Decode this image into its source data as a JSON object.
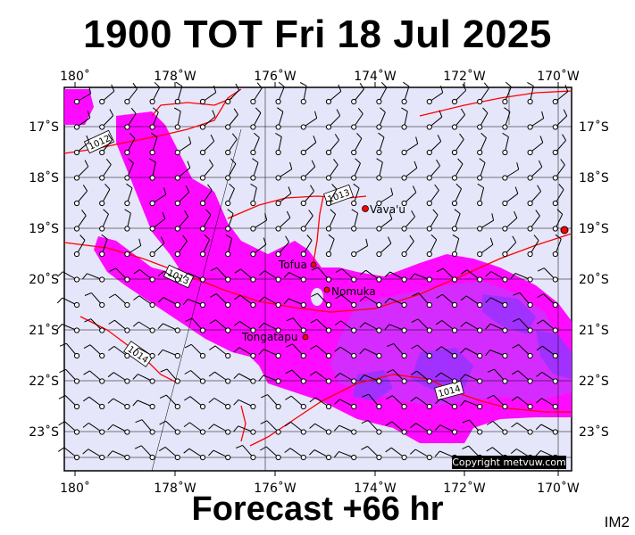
{
  "title": "1900 TOT Fri 18 Jul 2025",
  "footer": "Forecast +66 hr",
  "image_code": "IM2",
  "copyright": "Copyright metvuw.com",
  "axes": {
    "lon_labels": [
      "180˚",
      "178˚W",
      "176˚W",
      "174˚W",
      "172˚W",
      "170˚W"
    ],
    "lat_labels": [
      "17˚S",
      "18˚S",
      "19˚S",
      "20˚S",
      "21˚S",
      "22˚S",
      "23˚S"
    ]
  },
  "places": [
    {
      "name": "Vava'u",
      "symbol": "dot"
    },
    {
      "name": "Tofua",
      "symbol": "dot"
    },
    {
      "name": "Nomuka",
      "symbol": "dot"
    },
    {
      "name": "Tongatapu",
      "symbol": "dot"
    }
  ],
  "isobars": [
    {
      "label": "1012"
    },
    {
      "label": "1013"
    },
    {
      "label": "1013"
    },
    {
      "label": "1014"
    },
    {
      "label": "1014"
    }
  ],
  "colors": {
    "ocean": "#e6e6fa",
    "rain_light": "#ff00ff",
    "rain_medium": "#cc33ff",
    "rain_heavy": "#9933ff",
    "isobar": "#ff0000",
    "place_marker": "#ff0000"
  }
}
